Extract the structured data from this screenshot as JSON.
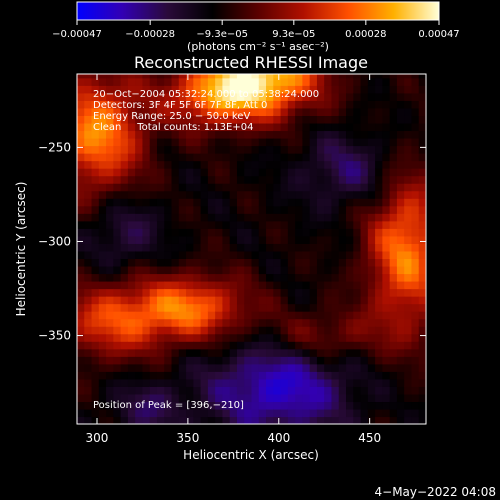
{
  "chart_data": {
    "type": "heatmap",
    "title": "Reconstructed RHESSI Image",
    "xlabel": "Heliocentric X (arcsec)",
    "ylabel": "Heliocentric Y (arcsec)",
    "xlim": [
      289,
      481
    ],
    "ylim": [
      -397,
      -211
    ],
    "x_ticks": [
      300,
      350,
      400,
      450
    ],
    "y_ticks": [
      -250,
      -300,
      -350
    ],
    "x_tick_labels": [
      "300",
      "350",
      "400",
      "450"
    ],
    "y_tick_labels": [
      "−250",
      "−300",
      "−350"
    ],
    "colorbar": {
      "min": -0.00047,
      "max": 0.00047,
      "tick_values": [
        -0.00047,
        -0.00028,
        -9.3e-05,
        9.3e-05,
        0.00028,
        0.00047
      ],
      "tick_labels": [
        "−0.00047",
        "−0.00028",
        "−9.3e−05",
        "9.3e−05",
        "0.00028",
        "0.00047"
      ],
      "units_label": "(photons cm⁻² s⁻¹ asec⁻²)",
      "colors": [
        "#0000ff",
        "#3200b4",
        "#2a0a3a",
        "#000000",
        "#5a0000",
        "#b01000",
        "#ff5000",
        "#ffb000",
        "#ffffd8"
      ]
    },
    "info_lines": [
      "20−Oct−2004 05:32:24.000 to 05:38:24.000",
      "Detectors: 3F 4F 5F 6F 7F 8F, Att 0",
      "Energy Range: 25.0 − 50.0 keV",
      "Clean     Total counts: 1.13E+04"
    ],
    "peak_label": "Position of Peak = [396,−210]",
    "sources": [
      {
        "x": 393,
        "y": -212,
        "sx": 22,
        "sy": 14,
        "amp": 1.0
      },
      {
        "x": 365,
        "y": -222,
        "sx": 20,
        "sy": 12,
        "amp": 0.7
      },
      {
        "x": 300,
        "y": -242,
        "sx": 18,
        "sy": 22,
        "amp": 0.85
      },
      {
        "x": 470,
        "y": -305,
        "sx": 15,
        "sy": 30,
        "amp": 0.8
      },
      {
        "x": 352,
        "y": -335,
        "sx": 22,
        "sy": 12,
        "amp": 0.75
      },
      {
        "x": 308,
        "y": -342,
        "sx": 22,
        "sy": 14,
        "amp": 0.6
      },
      {
        "x": 425,
        "y": -350,
        "sx": 22,
        "sy": 10,
        "amp": 0.35
      }
    ],
    "negatives": [
      {
        "x": 400,
        "y": -378,
        "sx": 28,
        "sy": 18,
        "amp": -0.6
      },
      {
        "x": 315,
        "y": -295,
        "sx": 14,
        "sy": 14,
        "amp": -0.3
      },
      {
        "x": 440,
        "y": -262,
        "sx": 20,
        "sy": 14,
        "amp": -0.35
      },
      {
        "x": 328,
        "y": -388,
        "sx": 14,
        "sy": 10,
        "amp": -0.3
      }
    ],
    "background_level": -0.22,
    "footer_date": "4−May−2022 04:08"
  }
}
